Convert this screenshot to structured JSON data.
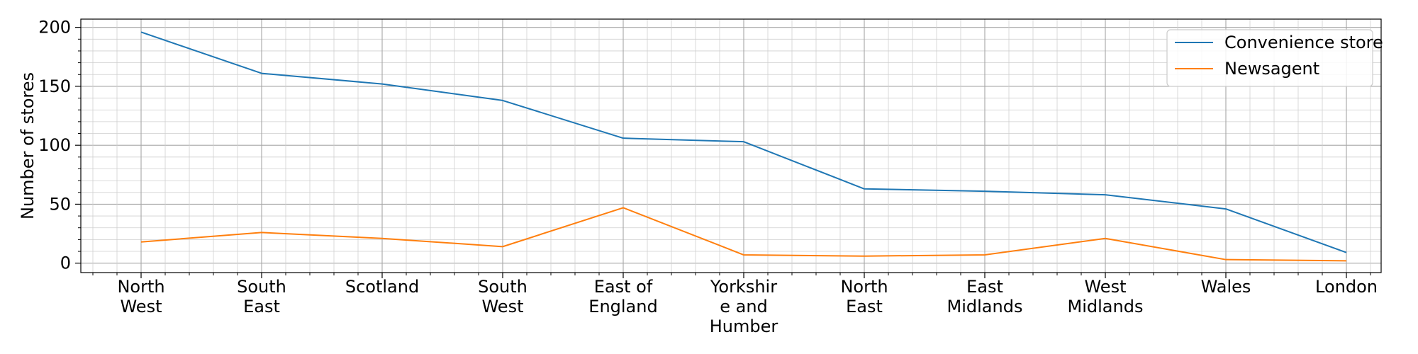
{
  "chart_data": {
    "type": "line",
    "title": "",
    "xlabel": "",
    "ylabel": "Number of stores",
    "categories": [
      [
        "North",
        "West"
      ],
      [
        "South",
        "East"
      ],
      [
        "Scotland"
      ],
      [
        "South",
        "West"
      ],
      [
        "East of",
        "England"
      ],
      [
        "Yorkshir",
        "e and",
        "Humber"
      ],
      [
        "North",
        "East"
      ],
      [
        "East",
        "Midlands"
      ],
      [
        "West",
        "Midlands"
      ],
      [
        "Wales"
      ],
      [
        "London"
      ]
    ],
    "series": [
      {
        "name": "Convenience store",
        "color": "#1f77b4",
        "values": [
          196,
          161,
          152,
          138,
          106,
          103,
          63,
          61,
          58,
          46,
          9
        ]
      },
      {
        "name": "Newsagent",
        "color": "#ff7f0e",
        "values": [
          18,
          26,
          21,
          14,
          47,
          7,
          6,
          7,
          21,
          3,
          2
        ]
      }
    ],
    "ylim": [
      -8,
      207
    ],
    "yticks": [
      0,
      50,
      100,
      150,
      200
    ],
    "grid": true,
    "minor_grid": true,
    "legend_position": "top-right"
  }
}
